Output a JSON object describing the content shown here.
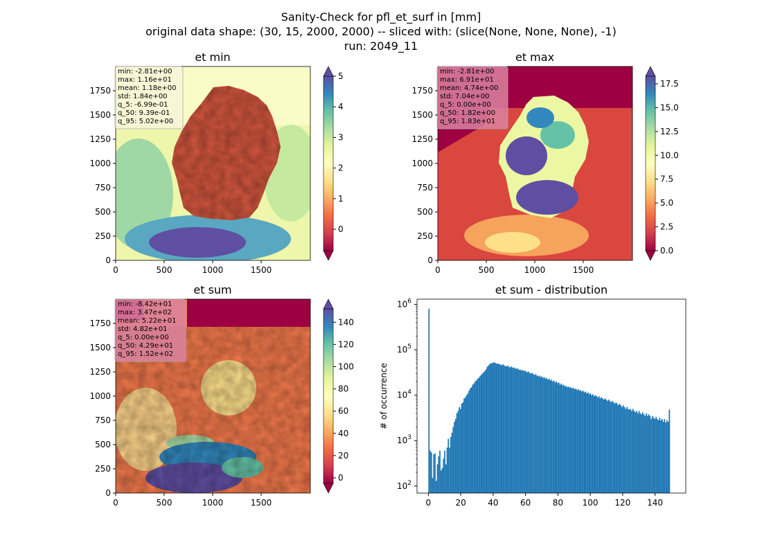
{
  "suptitle": {
    "line1": "Sanity-Check for pfl_et_surf in [mm]",
    "line2": "original data shape: (30, 15, 2000, 2000) -- sliced with: (slice(None, None, None), -1)",
    "line3": "run: 2049_11"
  },
  "colors": {
    "spectral": [
      "#9e0142",
      "#d53e4f",
      "#f46d43",
      "#fdae61",
      "#fee08b",
      "#ffffbf",
      "#e6f598",
      "#abdda4",
      "#66c2a5",
      "#3288bd",
      "#5e4fa2"
    ],
    "hist_bar": "#1f77b4",
    "statbox_light": "#f5f5dc",
    "statbox_dark": "#d982a0"
  },
  "maps": [
    {
      "id": "et_min",
      "title": "et min",
      "xticks": [
        "0",
        "500",
        "1000",
        "1500"
      ],
      "yticks": [
        "0",
        "250",
        "500",
        "750",
        "1000",
        "1250",
        "1500",
        "1750"
      ],
      "cbar_ticks": [
        "0",
        "1",
        "2",
        "3",
        "4",
        "5"
      ],
      "cbar_min": -0.7,
      "cbar_max": 5.0,
      "stats": [
        "min: -2.81e+00",
        "max: 1.16e+01",
        "mean: 1.18e+00",
        "std: 1.84e+00",
        "q_5: -6.99e-01",
        "q_50: 9.39e-01",
        "q_95: 5.02e+00"
      ],
      "statbox": "light"
    },
    {
      "id": "et_max",
      "title": "et max",
      "xticks": [
        "0",
        "500",
        "1000",
        "1500"
      ],
      "yticks": [
        "0",
        "250",
        "500",
        "750",
        "1000",
        "1250",
        "1500",
        "1750"
      ],
      "cbar_ticks": [
        "0.0",
        "2.5",
        "5.0",
        "7.5",
        "10.0",
        "12.5",
        "15.0",
        "17.5"
      ],
      "cbar_min": 0.0,
      "cbar_max": 18.3,
      "stats": [
        "min: -2.81e+00",
        "max: 6.91e+01",
        "mean: 4.74e+00",
        "std: 7.04e+00",
        "q_5: 0.00e+00",
        "q_50: 1.82e+00",
        "q_95: 1.83e+01"
      ],
      "statbox": "dark"
    },
    {
      "id": "et_sum",
      "title": "et sum",
      "xticks": [
        "0",
        "500",
        "1000",
        "1500"
      ],
      "yticks": [
        "0",
        "250",
        "500",
        "750",
        "1000",
        "1250",
        "1500",
        "1750"
      ],
      "cbar_ticks": [
        "0",
        "20",
        "40",
        "60",
        "80",
        "100",
        "120",
        "140"
      ],
      "cbar_min": -5,
      "cbar_max": 152,
      "stats": [
        "min: -8.42e+01",
        "max: 3.47e+02",
        "mean: 5.22e+01",
        "std: 4.82e+01",
        "q_5: 0.00e+00",
        "q_50: 4.29e+01",
        "q_95: 1.52e+02"
      ],
      "statbox": "dark"
    }
  ],
  "chart_data": {
    "type": "bar",
    "title": "et sum - distribution",
    "xlabel": "",
    "ylabel": "# of occurrence",
    "yscale": "log",
    "ylim": [
      70,
      1300000
    ],
    "xlim": [
      -7,
      159
    ],
    "xticks": [
      "0",
      "20",
      "40",
      "60",
      "80",
      "100",
      "120",
      "140"
    ],
    "ytick_powers": [
      2,
      3,
      4,
      5,
      6
    ],
    "bin_start": 0,
    "bin_width": 0.75,
    "values": [
      800000,
      600,
      550,
      150,
      500,
      520,
      130,
      300,
      450,
      600,
      220,
      250,
      400,
      600,
      300,
      700,
      1100,
      700,
      1200,
      1500,
      2000,
      2600,
      3000,
      4000,
      4500,
      5500,
      5000,
      6500,
      7000,
      8500,
      9000,
      10000,
      11000,
      12500,
      14000,
      15000,
      17000,
      18000,
      20000,
      21000,
      23000,
      24000,
      26000,
      28000,
      30000,
      32000,
      34000,
      37000,
      42000,
      45000,
      48000,
      51000,
      50000,
      53000,
      52000,
      51000,
      49000,
      50000,
      48000,
      47000,
      46000,
      48000,
      45000,
      44000,
      43000,
      45000,
      42000,
      41000,
      43000,
      40000,
      41000,
      39000,
      38000,
      39000,
      36000,
      37000,
      35000,
      36000,
      34000,
      35000,
      33000,
      32000,
      33000,
      31000,
      30000,
      31000,
      29000,
      28000,
      29000,
      27000,
      26000,
      27000,
      25000,
      26000,
      24000,
      25000,
      23000,
      24000,
      22000,
      23000,
      21000,
      22000,
      20000,
      21000,
      19000,
      20000,
      18500,
      19000,
      17000,
      18000,
      16500,
      17000,
      15500,
      16000,
      15000,
      15500,
      14500,
      15000,
      14000,
      14500,
      13500,
      14000,
      13000,
      13500,
      12500,
      13000,
      12000,
      12500,
      11500,
      12000,
      11000,
      11500,
      10500,
      11000,
      10000,
      10500,
      9500,
      10000,
      9500,
      9000,
      9500,
      8500,
      9000,
      8500,
      8000,
      8500,
      8000,
      7500,
      8000,
      7500,
      7000,
      7500,
      7000,
      6500,
      7000,
      6500,
      6000,
      6500,
      6000,
      5500,
      6000,
      5500,
      5000,
      5500,
      5000,
      4800,
      5000,
      4500,
      5000,
      4500,
      4200,
      4500,
      4000,
      4500,
      4000,
      3800,
      4200,
      3800,
      3500,
      4000,
      3500,
      3800,
      3500,
      3000,
      3500,
      3200,
      3000,
      3300,
      3000,
      2800,
      3200,
      2800,
      3000,
      2600,
      3000,
      2500,
      2800,
      2600,
      4800
    ]
  }
}
